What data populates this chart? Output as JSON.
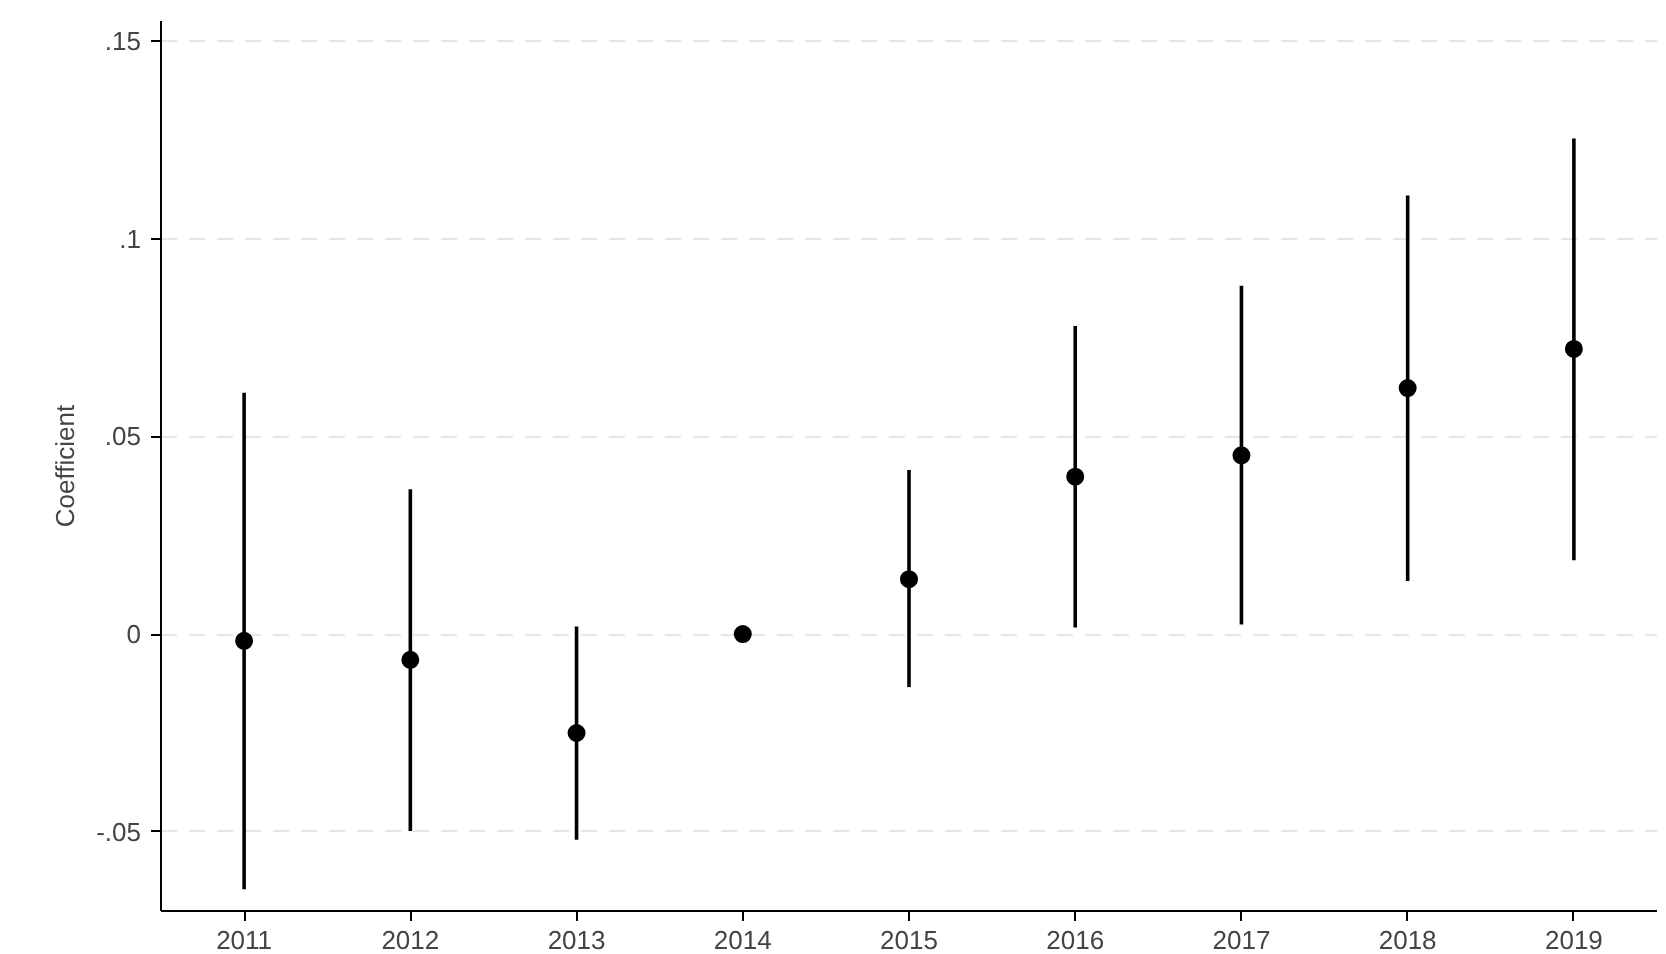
{
  "chart_data": {
    "type": "scatter",
    "ylabel": "Coefficient",
    "categories": [
      "2011",
      "2012",
      "2013",
      "2014",
      "2015",
      "2016",
      "2017",
      "2018",
      "2019"
    ],
    "series": [
      {
        "color": "#000000",
        "values": [
          -0.0017,
          -0.0065,
          -0.025,
          0,
          0.0139,
          0.0398,
          0.0452,
          0.0622,
          0.0721
        ],
        "errors": [
          [
            -0.0645,
            0.061
          ],
          [
            -0.0498,
            0.0366
          ],
          [
            -0.052,
            0.0019
          ],
          null,
          [
            -0.0134,
            0.0415
          ],
          [
            0.0017,
            0.0779
          ],
          [
            0.0024,
            0.0881
          ],
          [
            0.0134,
            0.1109
          ],
          [
            0.0187,
            0.1253
          ]
        ]
      }
    ],
    "ylim": [
      -0.07,
      0.155
    ],
    "yticks": [
      {
        "value": -0.05,
        "label": "-.05"
      },
      0,
      {
        "value": 0.05,
        "label": ".05"
      },
      {
        "value": 0.1,
        "label": ".1"
      },
      {
        "value": 0.15,
        "label": ".15"
      }
    ],
    "grid": "y",
    "marker": "circle"
  }
}
